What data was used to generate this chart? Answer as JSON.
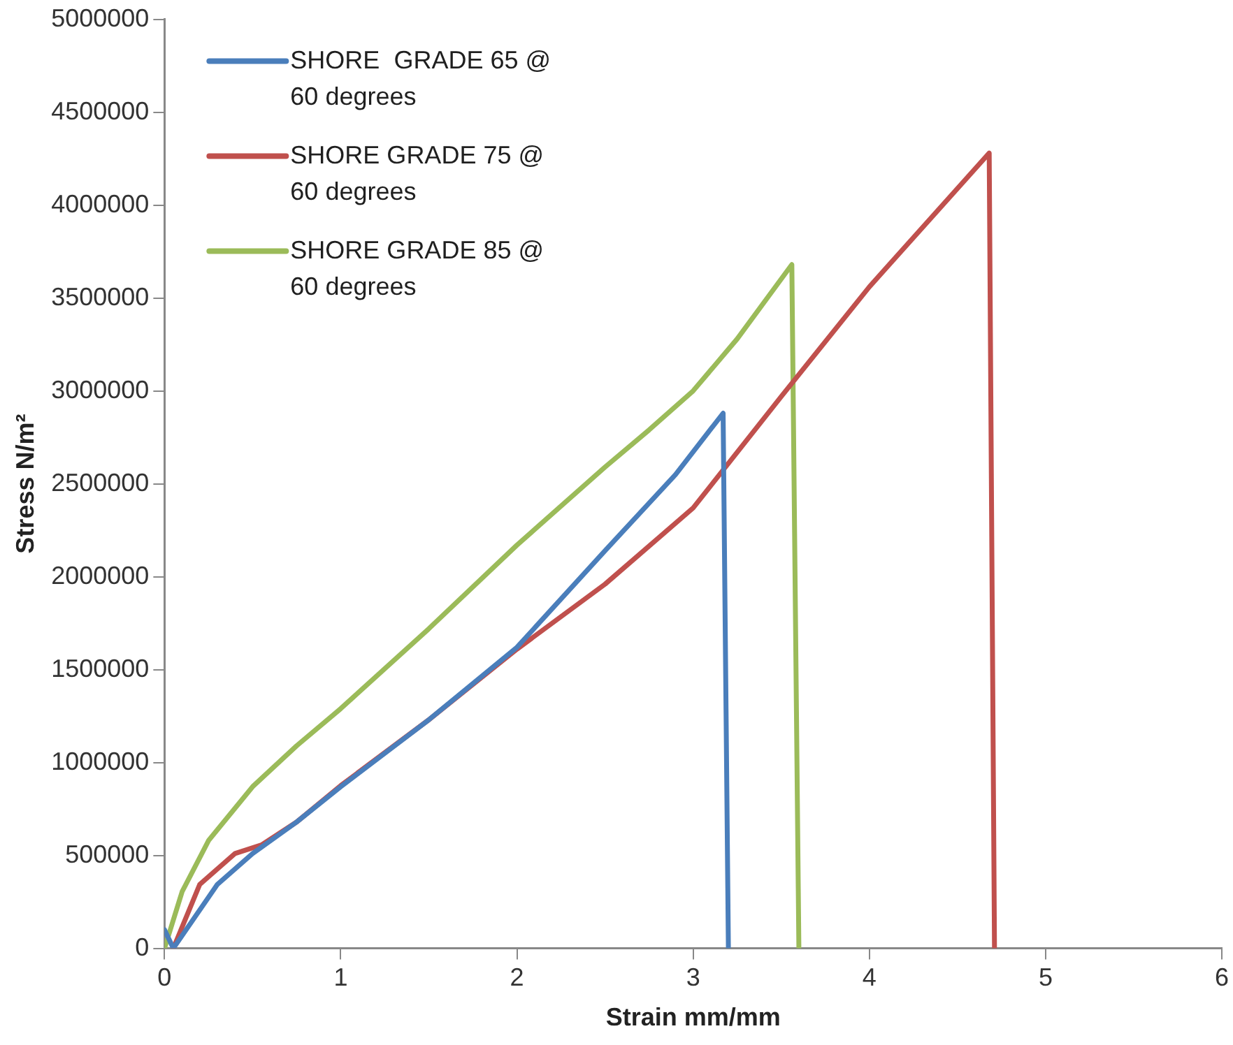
{
  "chart_data": {
    "type": "line",
    "xlabel": "Strain mm/mm",
    "ylabel": "Stress N/m²",
    "xlim": [
      0,
      6
    ],
    "xticks": [
      0,
      1,
      2,
      3,
      4,
      5,
      6
    ],
    "ylim": [
      0,
      5000000
    ],
    "yticks": [
      0,
      500000,
      1000000,
      1500000,
      2000000,
      2500000,
      3000000,
      3500000,
      4000000,
      4500000,
      5000000
    ],
    "grid": false,
    "legend": "top left",
    "marker": "none",
    "line_style": "solid",
    "series": [
      {
        "name": "SHORE  GRADE 65 @ 60 degrees",
        "color": "#4a7ebb",
        "x": [
          0,
          0.05,
          0.3,
          0.5,
          0.75,
          1,
          1.5,
          2,
          2.5,
          2.9,
          3.17,
          3.2
        ],
        "values": [
          100000,
          0,
          344000,
          510000,
          680000,
          870000,
          1230000,
          1620000,
          2140000,
          2550000,
          2880000,
          0
        ]
      },
      {
        "name": "SHORE GRADE 75 @ 60 degrees",
        "color": "#c0504d",
        "x": [
          0.05,
          0.2,
          0.4,
          0.55,
          0.75,
          1,
          1.5,
          2,
          2.5,
          3,
          3.5,
          4,
          4.68,
          4.71
        ],
        "values": [
          0,
          344000,
          510000,
          556000,
          680000,
          876000,
          1230000,
          1610000,
          1960000,
          2370000,
          2970000,
          3560000,
          4280000,
          0
        ]
      },
      {
        "name": "SHORE GRADE 85 @ 60 degrees",
        "color": "#9bbb59",
        "x": [
          0,
          0.1,
          0.25,
          0.5,
          0.75,
          1,
          1.5,
          2,
          2.5,
          2.75,
          3,
          3.25,
          3.56,
          3.6
        ],
        "values": [
          0,
          305000,
          580000,
          870000,
          1090000,
          1290000,
          1720000,
          2170000,
          2590000,
          2790000,
          3000000,
          3280000,
          3680000,
          0
        ]
      }
    ]
  }
}
